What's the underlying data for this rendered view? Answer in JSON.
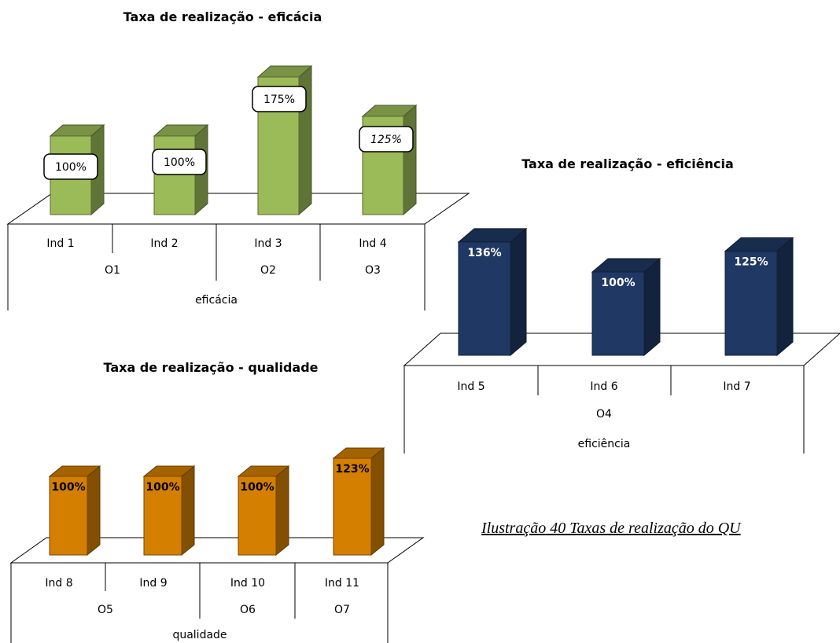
{
  "caption": "Ilustração 40  Taxas de realização do QU",
  "chart_data": [
    {
      "type": "bar",
      "title": "Taxa de realização - eficácia",
      "color": "#9bbb59",
      "categories": [
        "Ind 1",
        "Ind 2",
        "Ind 3",
        "Ind 4"
      ],
      "values": [
        100,
        100,
        175,
        125
      ],
      "data_labels": [
        "100%",
        "100%",
        "175%",
        "125%"
      ],
      "groups": [
        "O1",
        "O2",
        "O3"
      ],
      "group_spans": [
        2,
        1,
        1
      ],
      "category_title": "eficácia",
      "ylim": [
        0,
        175
      ],
      "grid": false,
      "legend": "none"
    },
    {
      "type": "bar",
      "title": "Taxa de realização - eficiência",
      "color": "#1f3864",
      "categories": [
        "Ind 5",
        "Ind 6",
        "Ind 7"
      ],
      "values": [
        136,
        100,
        125
      ],
      "data_labels": [
        "136%",
        "100%",
        "125%"
      ],
      "groups": [
        "O4"
      ],
      "group_spans": [
        3
      ],
      "category_title": "eficiência",
      "ylim": [
        0,
        136
      ],
      "grid": false,
      "legend": "none"
    },
    {
      "type": "bar",
      "title": "Taxa de realização - qualidade",
      "color": "#d47f00",
      "categories": [
        "Ind 8",
        "Ind 9",
        "Ind 10",
        "Ind 11"
      ],
      "values": [
        100,
        100,
        100,
        123
      ],
      "data_labels": [
        "100%",
        "100%",
        "100%",
        "123%"
      ],
      "groups": [
        "O5",
        "O6",
        "O7"
      ],
      "group_spans": [
        2,
        1,
        1
      ],
      "category_title": "qualidade",
      "ylim": [
        0,
        123
      ],
      "grid": false,
      "legend": "none"
    }
  ]
}
